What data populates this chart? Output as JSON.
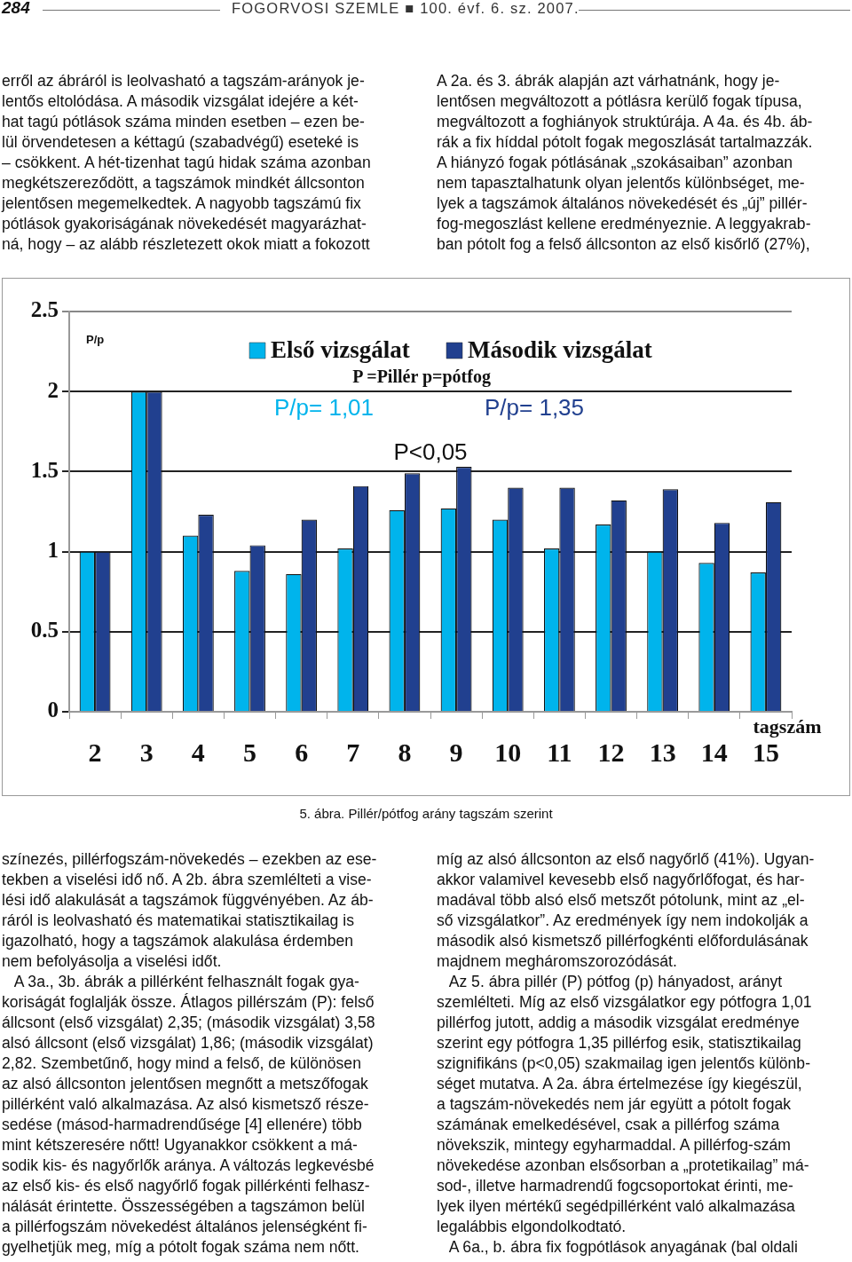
{
  "chart_data": {
    "type": "bar",
    "title": "5. ábra. Pillér/pótfog arány tagszám szerint",
    "ylabel": "P/p",
    "xlabel": "tagszám",
    "categories": [
      "2",
      "3",
      "4",
      "5",
      "6",
      "7",
      "8",
      "9",
      "10",
      "11",
      "12",
      "13",
      "14",
      "15"
    ],
    "series": [
      {
        "name": "Első vizsgálat",
        "color": "#00b4ec",
        "values": [
          1.0,
          2.0,
          1.1,
          0.88,
          0.86,
          1.02,
          1.26,
          1.27,
          1.2,
          1.02,
          1.17,
          1.0,
          0.93,
          0.87
        ]
      },
      {
        "name": "Második vizsgálat",
        "color": "#21408f",
        "values": [
          1.0,
          2.0,
          1.23,
          1.04,
          1.2,
          1.41,
          1.49,
          1.53,
          1.4,
          1.4,
          1.32,
          1.39,
          1.18,
          1.31
        ]
      }
    ],
    "ylim": [
      0,
      2.5
    ],
    "yticks": [
      0,
      {
        "value": 0.5,
        "label": "0.5"
      },
      1,
      {
        "value": 1.5,
        "label": "1.5"
      },
      2,
      {
        "value": 2.5,
        "label": "2.5"
      }
    ],
    "grid": "y",
    "legend": "top",
    "annotations": [
      "284",
      "FOGORVOSI SZEMLE ■ 100. évf. 6. sz. 2007.",
      "erről az ábráról is leolvasható a tagszám-arányok je-\nlentős eltolódása. A második vizsgálat idejére a két-\nhat tagú pótlások száma minden esetben – ezen be-\nlül örvendetesen a kéttagú (szabadvégű) eseteké is\n– csökkent. A hét-tizenhat tagú hidak száma azonban\nmegkétszereződött, a tagszámok mindkét állcsonton\njelentősen megemelkedtek. A nagyobb tagszámú fix\npótlások gyakoriságának növekedését magyarázhat-\nná, hogy – az alább részletezett okok miatt a fokozott",
      "A 2a. és 3. ábrák alapján azt várhatnánk, hogy je-\nlentősen megváltozott a pótlásra kerülő fogak típusa,\nmegváltozott a foghiányok struktúrája. A 4a. és 4b. áb-\nrák a fix híddal pótolt fogak megoszlását tartalmazzák.\nA hiányzó fogak pótlásának „szokásaiban” azonban\nnem tapasztalhatunk olyan jelentős különbséget, me-\nlyek a tagszámok általános növekedését és „új” pillér-\nfog-megoszlást kellene eredményeznie. A leggyakrab-\nban pótolt fog a felső állcsonton az első kisőrlő (27%),",
      "P =Pillér p=pótfog",
      "P/p= 1,01",
      "P/p= 1,35",
      "P<0,05",
      "színezés, pillérfogszám-növekedés – ezekben az ese-\ntekben a viselési idő nő. A 2b. ábra szemlélteti a vise-\nlési idő alakulását a tagszámok függvényében. Az áb-\nráról is leolvasható és matematikai statisztikailag is\nigazolható, hogy a tagszámok alakulása érdemben\nnem befolyásolja a viselési időt.\n   A 3a., 3b. ábrák a pillérként felhasznált fogak gya-\nkoriságát foglalják össze. Átlagos pillérszám (P): felső\nállcsont (első vizsgálat) 2,35; (második vizsgálat) 3,58\nalsó állcsont (első vizsgálat) 1,86; (második vizsgálat)\n2,82. Szembetűnő, hogy mind a felső, de különösen\naz alsó állcsonton jelentősen megnőtt a metszőfogak\npillérként való alkalmazása. Az alsó kismetsző része-\nsedése (másod-harmadrendűsége [4] ellenére) több\nmint kétszeresére nőtt! Ugyanakkor csökkent a má-\nsodik kis- és nagyőrlők aránya. A változás legkevésbé\naz első kis- és első nagyőrlő fogak pillérkénti felhasz-\nnálását érintette. Összességében a tagszámon belül\na pillérfogszám növekedést általános jelenségként fi-\ngyelhetjük meg, míg a pótolt fogak száma nem nőtt.",
      "míg az alsó állcsonton az első nagyőrlő (41%). Ugyan-\nakkor valamivel kevesebb első nagyőrlőfogat, és har-\nmadával több alsó első metszőt pótolunk, mint az „el-\nső vizsgálatkor”. Az eredmények így nem indokolják a\nmásodik alsó kismetsző pillérfogkénti előfordulásának\nmajdnem megháromszorozódását.\n   Az 5. ábra pillér (P) pótfog (p) hányadost, arányt\nszemlélteti. Míg az első vizsgálatkor egy pótfogra 1,01\npillérfog jutott, addig a második vizsgálat eredménye\nszerint egy pótfogra 1,35 pillérfog esik, statisztikailag\nszignifikáns (p<0,05) szakmailag igen jelentős különb-\nséget mutatva. A 2a. ábra értelmezése így kiegészül,\na tagszám-növekedés nem jár együtt a pótolt fogak\nszámának emelkedésével, csak a pillérfog száma\nnövekszik, mintegy egyharmaddal. A pillérfog-szám\nnövekedése azonban elsősorban a „protetikailag” má-\nsod-, illetve harmadrendű fogcsoportokat érinti, me-\nlyek ilyen mértékű segédpillérként való alkalmazása\nlegalábbis elgondolkodtató.\n   A 6a., b. ábra fix fogpótlások anyagának (bal oldali"
    ]
  }
}
